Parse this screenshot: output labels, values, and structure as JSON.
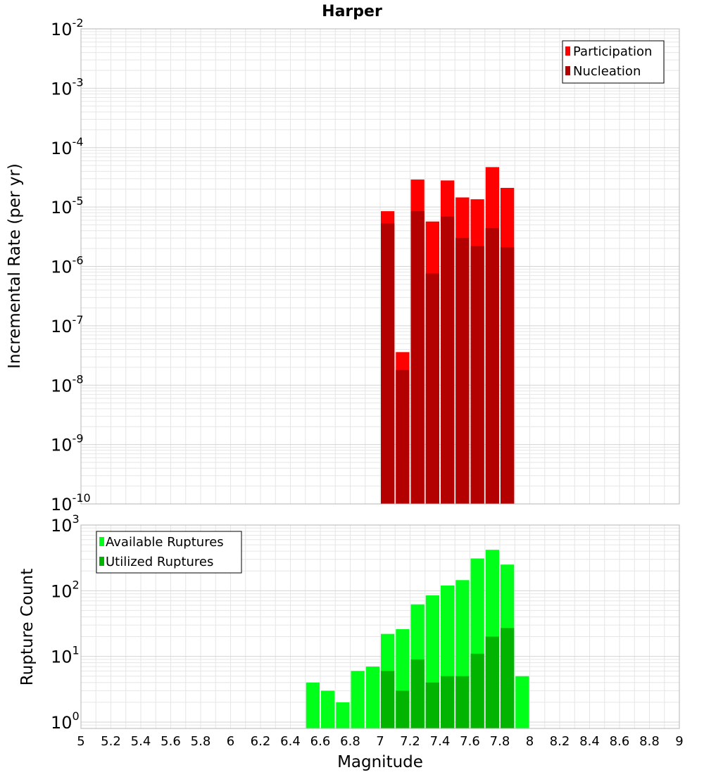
{
  "colors": {
    "participation": "#ff0000",
    "nucleation": "#b30000",
    "available": "#00ff19",
    "utilized": "#00b400",
    "grid": "#e6e6e6",
    "frame": "#b4b4b4"
  },
  "chart_data": [
    {
      "type": "bar",
      "title": "Harper",
      "xlabel": "",
      "ylabel": "Incremental Rate (per yr)",
      "yscale": "log",
      "ylim": [
        1e-10,
        0.01
      ],
      "xlim": [
        5,
        9
      ],
      "grid": true,
      "legend_position": "top-right",
      "y_ticks": [
        {
          "base": "10",
          "exp": "-10",
          "value": 1e-10
        },
        {
          "base": "10",
          "exp": "-9",
          "value": 1e-09
        },
        {
          "base": "10",
          "exp": "-8",
          "value": 1e-08
        },
        {
          "base": "10",
          "exp": "-7",
          "value": 1e-07
        },
        {
          "base": "10",
          "exp": "-6",
          "value": 1e-06
        },
        {
          "base": "10",
          "exp": "-5",
          "value": 1e-05
        },
        {
          "base": "10",
          "exp": "-4",
          "value": 0.0001
        },
        {
          "base": "10",
          "exp": "-3",
          "value": 0.001
        },
        {
          "base": "10",
          "exp": "-2",
          "value": 0.01
        }
      ],
      "x": [
        7.05,
        7.15,
        7.25,
        7.35,
        7.45,
        7.55,
        7.65,
        7.75,
        7.85
      ],
      "series": [
        {
          "name": "Participation",
          "values": [
            8.5e-06,
            3.6e-08,
            2.9e-05,
            5.7e-06,
            2.8e-05,
            1.45e-05,
            1.35e-05,
            4.7e-05,
            2.1e-05
          ]
        },
        {
          "name": "Nucleation",
          "values": [
            5.3e-06,
            1.8e-08,
            8.5e-06,
            7.6e-07,
            6.9e-06,
            3e-06,
            2.2e-06,
            4.4e-06,
            2.1e-06
          ]
        }
      ]
    },
    {
      "type": "bar",
      "title": "",
      "xlabel": "Magnitude",
      "ylabel": "Rupture Count",
      "yscale": "log",
      "ylim": [
        0.8,
        1000
      ],
      "xlim": [
        5,
        9
      ],
      "grid": true,
      "legend_position": "top-left",
      "y_ticks": [
        {
          "base": "10",
          "exp": "0",
          "value": 1
        },
        {
          "base": "10",
          "exp": "1",
          "value": 10
        },
        {
          "base": "10",
          "exp": "2",
          "value": 100
        },
        {
          "base": "10",
          "exp": "3",
          "value": 1000
        }
      ],
      "x_ticks": [
        "5",
        "5.2",
        "5.4",
        "5.6",
        "5.8",
        "6",
        "6.2",
        "6.4",
        "6.6",
        "6.8",
        "7",
        "7.2",
        "7.4",
        "7.6",
        "7.8",
        "8",
        "8.2",
        "8.4",
        "8.6",
        "8.8",
        "9"
      ],
      "x": [
        6.55,
        6.65,
        6.75,
        6.85,
        6.95,
        7.05,
        7.15,
        7.25,
        7.35,
        7.45,
        7.55,
        7.65,
        7.75,
        7.85,
        7.95
      ],
      "series": [
        {
          "name": "Available Ruptures",
          "values": [
            4,
            3,
            2,
            6,
            7,
            22,
            26,
            62,
            85,
            120,
            145,
            310,
            420,
            250,
            5
          ]
        },
        {
          "name": "Utilized Ruptures",
          "values": [
            null,
            null,
            null,
            null,
            null,
            6,
            3,
            9,
            4,
            5,
            5,
            11,
            20,
            27,
            null
          ]
        }
      ]
    }
  ]
}
